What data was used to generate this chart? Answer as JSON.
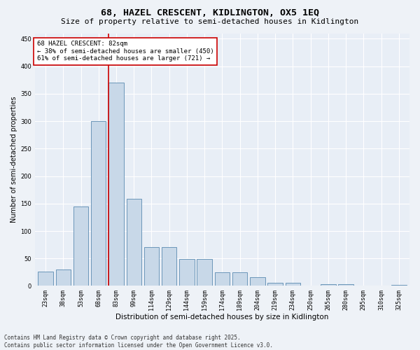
{
  "title": "68, HAZEL CRESCENT, KIDLINGTON, OX5 1EQ",
  "subtitle": "Size of property relative to semi-detached houses in Kidlington",
  "xlabel": "Distribution of semi-detached houses by size in Kidlington",
  "ylabel": "Number of semi-detached properties",
  "categories": [
    "23sqm",
    "38sqm",
    "53sqm",
    "68sqm",
    "83sqm",
    "99sqm",
    "114sqm",
    "129sqm",
    "144sqm",
    "159sqm",
    "174sqm",
    "189sqm",
    "204sqm",
    "219sqm",
    "234sqm",
    "250sqm",
    "265sqm",
    "280sqm",
    "295sqm",
    "310sqm",
    "325sqm"
  ],
  "values": [
    26,
    30,
    145,
    300,
    370,
    158,
    71,
    71,
    49,
    49,
    25,
    25,
    16,
    6,
    6,
    0,
    3,
    3,
    0,
    0,
    2
  ],
  "bar_color": "#c8d8e8",
  "bar_edge_color": "#5a8ab0",
  "vline_color": "#cc0000",
  "annotation_text": "68 HAZEL CRESCENT: 82sqm\n← 38% of semi-detached houses are smaller (450)\n61% of semi-detached houses are larger (721) →",
  "annotation_box_color": "#ffffff",
  "annotation_box_edge_color": "#cc0000",
  "footer": "Contains HM Land Registry data © Crown copyright and database right 2025.\nContains public sector information licensed under the Open Government Licence v3.0.",
  "ylim": [
    0,
    460
  ],
  "yticks": [
    0,
    50,
    100,
    150,
    200,
    250,
    300,
    350,
    400,
    450
  ],
  "bg_color": "#eef2f7",
  "plot_bg_color": "#e8eef6",
  "grid_color": "#ffffff",
  "title_fontsize": 9.5,
  "subtitle_fontsize": 8,
  "xlabel_fontsize": 7.5,
  "ylabel_fontsize": 7,
  "tick_fontsize": 6,
  "annotation_fontsize": 6.5,
  "footer_fontsize": 5.5
}
